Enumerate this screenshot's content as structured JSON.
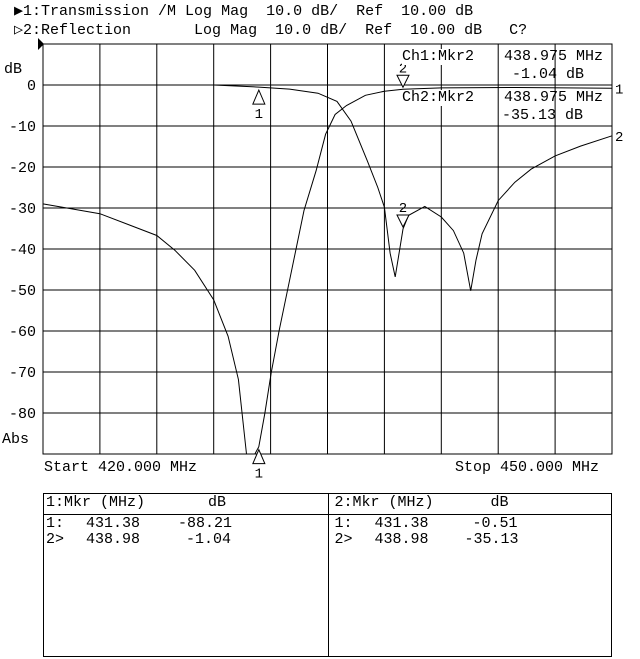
{
  "header": {
    "line1": "▶1:Transmission /M Log Mag  10.0 dB/  Ref  10.00 dB",
    "line2": "▷2:Reflection       Log Mag  10.0 dB/  Ref  10.00 dB   C?"
  },
  "marker_readout": {
    "ch1_label": "Ch1:Mkr2",
    "ch1_freq": "438.975 MHz",
    "ch1_value": "-1.04 dB",
    "ch2_label": "Ch2:Mkr2",
    "ch2_freq": "438.975 MHz",
    "ch2_value": "-35.13 dB"
  },
  "axis": {
    "unit": "dB",
    "format": "Abs",
    "start": "Start 420.000 MHz",
    "stop": "Stop 450.000 MHz"
  },
  "table": {
    "ch1": {
      "header_mkr": "1:Mkr (MHz)",
      "header_unit": "dB",
      "rows": [
        {
          "id": "1:",
          "freq": "431.38",
          "value": "-88.21"
        },
        {
          "id": "2>",
          "freq": "438.98",
          "value": "-1.04"
        }
      ]
    },
    "ch2": {
      "header_mkr": "2:Mkr (MHz)",
      "header_unit": "dB",
      "rows": [
        {
          "id": "1:",
          "freq": "431.38",
          "value": "-0.51"
        },
        {
          "id": "2>",
          "freq": "438.98",
          "value": "-35.13"
        }
      ]
    }
  },
  "chart_data": {
    "type": "line",
    "xlim": [
      420,
      450
    ],
    "ylim": [
      -90,
      10
    ],
    "yticks": [
      0,
      -10,
      -20,
      -30,
      -40,
      -50,
      -60,
      -70,
      -80
    ],
    "ytick_labels": [
      "0",
      "-10",
      "-20",
      "-30",
      "-40",
      "-50",
      "-60",
      "-70",
      "-80"
    ],
    "grid": true,
    "series": [
      {
        "name": "1",
        "x": [
          420,
          423,
          426,
          426.95,
          428,
          429,
          429.76,
          430.3,
          430.73,
          431.17,
          431.38,
          431.7,
          432.03,
          432.46,
          433,
          433.76,
          434.4,
          434.9,
          435.4,
          436,
          437,
          438,
          438.98,
          441,
          445,
          450
        ],
        "y": [
          -29,
          -31.4,
          -36.7,
          -40.3,
          -45.2,
          -52.4,
          -61.3,
          -71.8,
          -90,
          -90,
          -88.21,
          -80,
          -70.2,
          -59.7,
          -47.6,
          -30.6,
          -20.9,
          -12,
          -7.2,
          -5,
          -2.5,
          -1.5,
          -1.04,
          -0.7,
          -0.6,
          -0.8
        ]
      },
      {
        "name": "2",
        "x": [
          420,
          429,
          431.38,
          433,
          434.5,
          435.5,
          436.24,
          437.1,
          437.65,
          438,
          438.3,
          438.57,
          438.83,
          438.98,
          439.27,
          440.13,
          441,
          441.64,
          442.18,
          442.55,
          442.83,
          443.15,
          444,
          444.88,
          445.74,
          447,
          448.34,
          450
        ],
        "y": [
          0,
          0,
          -0.51,
          -1,
          -2,
          -4,
          -8.8,
          -18.5,
          -25,
          -29.8,
          -41,
          -46.8,
          -39.5,
          -35.13,
          -31.8,
          -29.6,
          -32.2,
          -35.5,
          -41,
          -50.2,
          -42.7,
          -36.3,
          -28.2,
          -23.7,
          -20.5,
          -17.3,
          -14.9,
          -12.4
        ]
      }
    ],
    "markers": [
      {
        "series": "1",
        "label": "1",
        "x": 431.38,
        "y": -88.21
      },
      {
        "series": "1",
        "label": "2",
        "x": 438.98,
        "y": -1.04
      },
      {
        "series": "2",
        "label": "1",
        "x": 431.38,
        "y": -0.51
      },
      {
        "series": "2",
        "label": "2",
        "x": 438.98,
        "y": -35.13
      }
    ]
  }
}
